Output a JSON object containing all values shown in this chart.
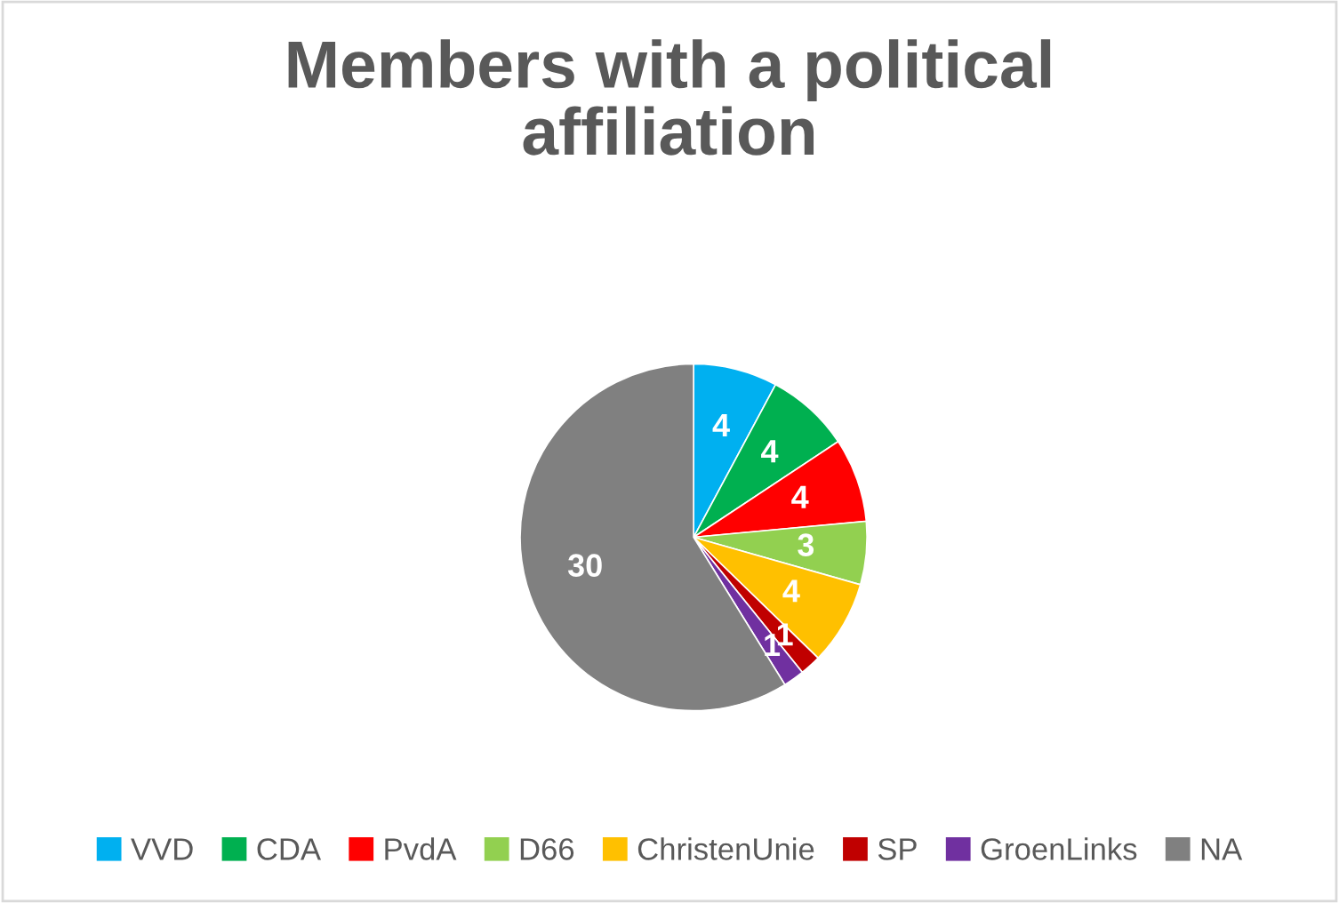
{
  "chart_data": {
    "type": "pie",
    "title": "Members with a political affiliation",
    "categories": [
      "VVD",
      "CDA",
      "PvdA",
      "D66",
      "ChristenUnie",
      "SP",
      "GroenLinks",
      "NA"
    ],
    "values": [
      4,
      4,
      4,
      3,
      4,
      1,
      1,
      30
    ],
    "colors": [
      "#00b0f0",
      "#00b050",
      "#ff0000",
      "#92d050",
      "#ffc000",
      "#c00000",
      "#7030a0",
      "#808080"
    ],
    "data_labels": true,
    "legend": "bottom"
  }
}
